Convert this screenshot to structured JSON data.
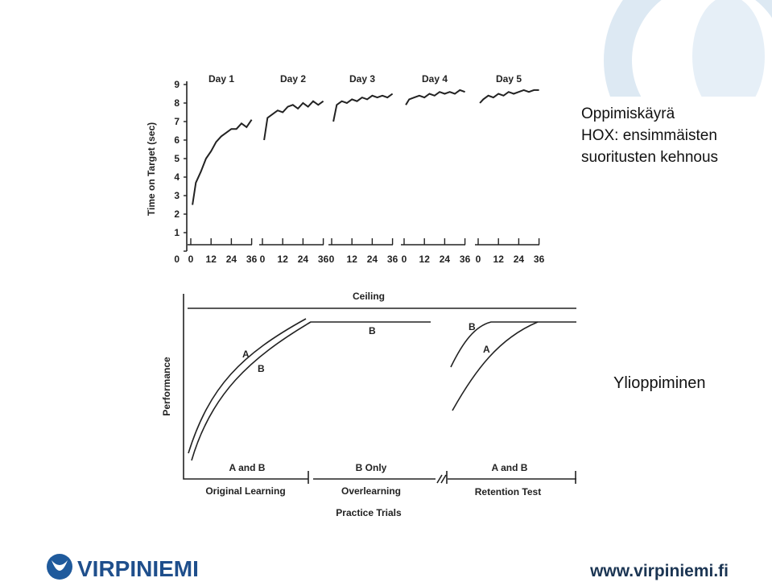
{
  "slide": {
    "title_lines": [
      "Oppimiskäyrä",
      "HOX: ensimmäisten",
      "suoritusten kehnous"
    ],
    "subtitle": "Ylioppiminen",
    "logo": "VIRPINIEMI",
    "url": "www.virpiniemi.fi"
  },
  "chart_data": [
    {
      "type": "line",
      "y_label": "Time on Target (sec)",
      "color": "#222222",
      "ylim": [
        0,
        9
      ],
      "yticks": [
        0,
        1,
        2,
        3,
        4,
        5,
        6,
        7,
        8,
        9
      ],
      "xlim": [
        0,
        40
      ],
      "xticks": [
        0,
        12,
        24,
        36
      ],
      "series": [
        {
          "name": "Day 1",
          "x": [
            1,
            3,
            6,
            9,
            12,
            15,
            18,
            21,
            24,
            27,
            30,
            33,
            36
          ],
          "values": [
            2.5,
            3.7,
            4.3,
            5.0,
            5.4,
            5.9,
            6.2,
            6.4,
            6.6,
            6.6,
            6.9,
            6.7,
            7.1
          ]
        },
        {
          "name": "Day 2",
          "x": [
            1,
            3,
            6,
            9,
            12,
            15,
            18,
            21,
            24,
            27,
            30,
            33,
            36
          ],
          "values": [
            6.0,
            7.2,
            7.4,
            7.6,
            7.5,
            7.8,
            7.9,
            7.7,
            8.0,
            7.8,
            8.1,
            7.9,
            8.1
          ]
        },
        {
          "name": "Day 3",
          "x": [
            1,
            3,
            6,
            9,
            12,
            15,
            18,
            21,
            24,
            27,
            30,
            33,
            36
          ],
          "values": [
            7.0,
            7.9,
            8.1,
            8.0,
            8.2,
            8.1,
            8.3,
            8.2,
            8.4,
            8.3,
            8.4,
            8.3,
            8.5
          ]
        },
        {
          "name": "Day 4",
          "x": [
            1,
            3,
            6,
            9,
            12,
            15,
            18,
            21,
            24,
            27,
            30,
            33,
            36
          ],
          "values": [
            7.9,
            8.2,
            8.3,
            8.4,
            8.3,
            8.5,
            8.4,
            8.6,
            8.5,
            8.6,
            8.5,
            8.7,
            8.6
          ]
        },
        {
          "name": "Day 5",
          "x": [
            1,
            3,
            6,
            9,
            12,
            15,
            18,
            21,
            24,
            27,
            30,
            33,
            36
          ],
          "values": [
            8.0,
            8.2,
            8.4,
            8.3,
            8.5,
            8.4,
            8.6,
            8.5,
            8.6,
            8.7,
            8.6,
            8.7,
            8.7
          ]
        }
      ]
    }
  ],
  "diagram": {
    "ceiling": "Ceiling",
    "y_label": "Performance",
    "x_label": "Practice Trials",
    "phases": [
      "Original Learning",
      "Overlearning",
      "Retention Test"
    ],
    "groups": [
      "A and B",
      "B Only",
      "A and B"
    ],
    "curve_labels": [
      "A",
      "B",
      "B",
      "B",
      "A"
    ]
  }
}
